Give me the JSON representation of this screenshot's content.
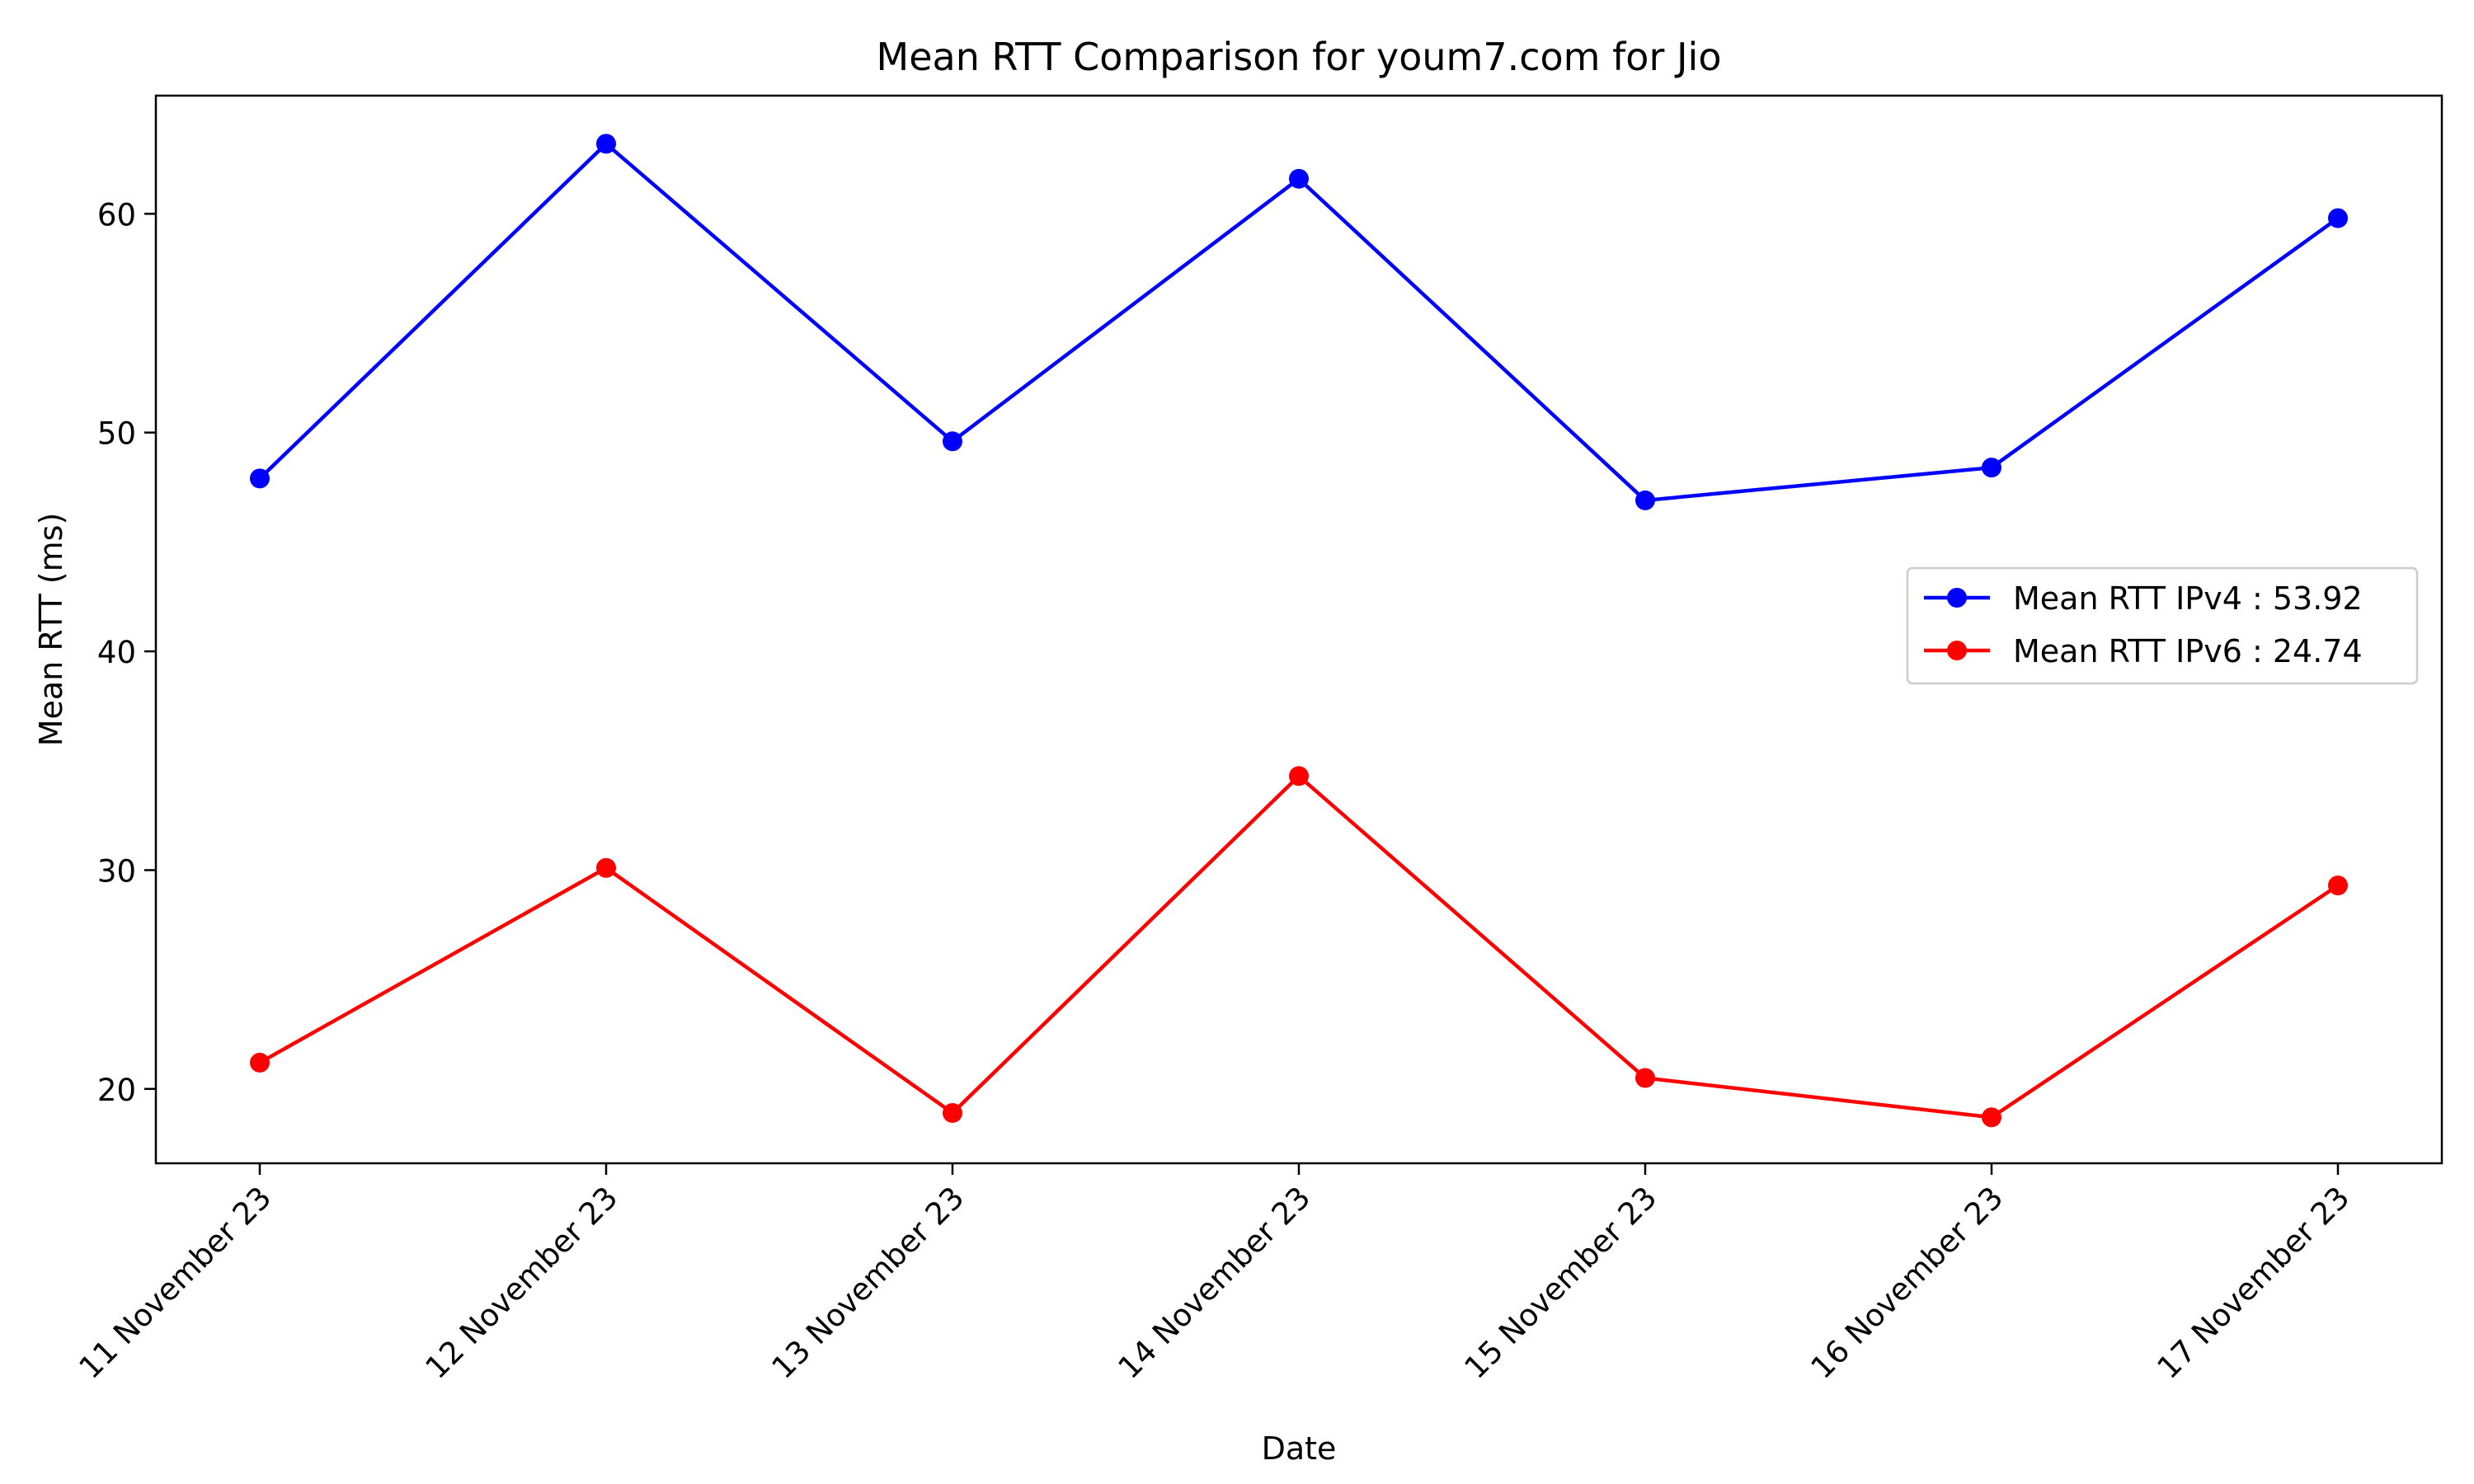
{
  "chart_data": {
    "type": "line",
    "title": "Mean RTT Comparison for youm7.com for Jio",
    "xlabel": "Date",
    "ylabel": "Mean RTT (ms)",
    "categories": [
      "11 November 23",
      "12 November 23",
      "13 November 23",
      "14 November 23",
      "15 November 23",
      "16 November 23",
      "17 November 23"
    ],
    "ylim": [
      16.6,
      65.4
    ],
    "yticks": [
      20,
      30,
      40,
      50,
      60
    ],
    "grid": false,
    "legend_position": "center-right",
    "series": [
      {
        "name": "Mean RTT IPv4 : 53.92",
        "color": "#0000ff",
        "values": [
          47.9,
          63.2,
          49.6,
          61.6,
          46.9,
          48.4,
          59.8
        ]
      },
      {
        "name": "Mean RTT IPv6 : 24.74",
        "color": "#ff0000",
        "values": [
          21.2,
          30.1,
          18.9,
          34.3,
          20.5,
          18.7,
          29.3
        ]
      }
    ]
  }
}
